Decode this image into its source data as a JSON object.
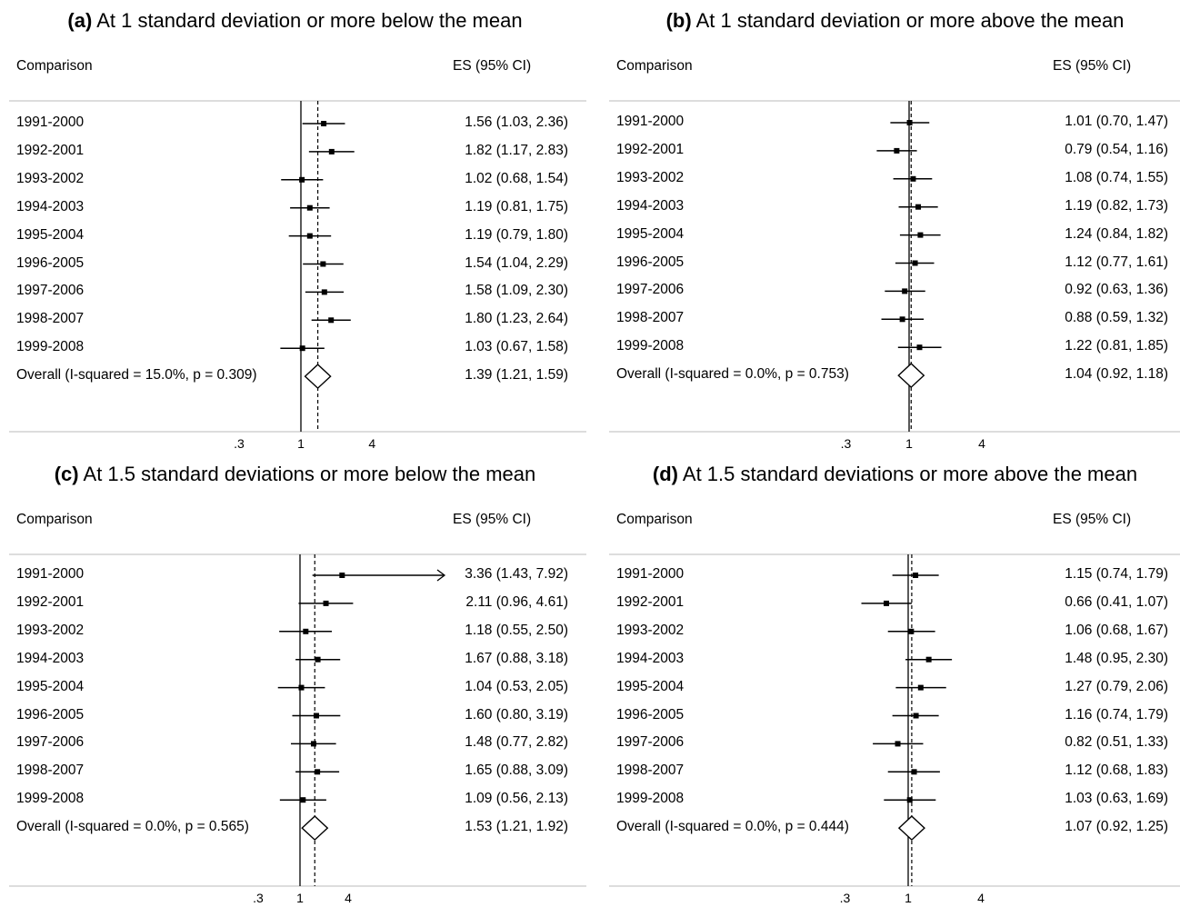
{
  "chart_data": [
    {
      "type": "forest",
      "panel": "a",
      "title_letter": "(a)",
      "title": "At 1 standard deviation or more below the mean",
      "col_comparison": "Comparison",
      "col_es": "ES (95% CI)",
      "scale": "log",
      "xticks": [
        {
          "value": 0.3,
          "label": ".3"
        },
        {
          "value": 1,
          "label": "1"
        },
        {
          "value": 4,
          "label": "4"
        }
      ],
      "rows": [
        {
          "label": "1991-2000",
          "es": 1.56,
          "lo": 1.03,
          "hi": 2.36,
          "text": "1.56 (1.03, 2.36)"
        },
        {
          "label": "1992-2001",
          "es": 1.82,
          "lo": 1.17,
          "hi": 2.83,
          "text": "1.82 (1.17, 2.83)"
        },
        {
          "label": "1993-2002",
          "es": 1.02,
          "lo": 0.68,
          "hi": 1.54,
          "text": "1.02 (0.68, 1.54)"
        },
        {
          "label": "1994-2003",
          "es": 1.19,
          "lo": 0.81,
          "hi": 1.75,
          "text": "1.19 (0.81, 1.75)"
        },
        {
          "label": "1995-2004",
          "es": 1.19,
          "lo": 0.79,
          "hi": 1.8,
          "text": "1.19 (0.79, 1.80)"
        },
        {
          "label": "1996-2005",
          "es": 1.54,
          "lo": 1.04,
          "hi": 2.29,
          "text": "1.54 (1.04, 2.29)"
        },
        {
          "label": "1997-2006",
          "es": 1.58,
          "lo": 1.09,
          "hi": 2.3,
          "text": "1.58 (1.09, 2.30)"
        },
        {
          "label": "1998-2007",
          "es": 1.8,
          "lo": 1.23,
          "hi": 2.64,
          "text": "1.80 (1.23, 2.64)"
        },
        {
          "label": "1999-2008",
          "es": 1.03,
          "lo": 0.67,
          "hi": 1.58,
          "text": "1.03 (0.67, 1.58)"
        }
      ],
      "overall": {
        "label": "Overall  (I-squared = 15.0%, p = 0.309)",
        "es": 1.39,
        "lo": 1.21,
        "hi": 1.59,
        "text": "1.39 (1.21, 1.59)"
      }
    },
    {
      "type": "forest",
      "panel": "b",
      "title_letter": "(b)",
      "title": "At 1 standard deviation or more above the mean",
      "col_comparison": "Comparison",
      "col_es": "ES (95% CI)",
      "scale": "log",
      "xticks": [
        {
          "value": 0.3,
          "label": ".3"
        },
        {
          "value": 1,
          "label": "1"
        },
        {
          "value": 4,
          "label": "4"
        }
      ],
      "rows": [
        {
          "label": "1991-2000",
          "es": 1.01,
          "lo": 0.7,
          "hi": 1.47,
          "text": "1.01 (0.70, 1.47)"
        },
        {
          "label": "1992-2001",
          "es": 0.79,
          "lo": 0.54,
          "hi": 1.16,
          "text": "0.79 (0.54, 1.16)"
        },
        {
          "label": "1993-2002",
          "es": 1.08,
          "lo": 0.74,
          "hi": 1.55,
          "text": "1.08 (0.74, 1.55)"
        },
        {
          "label": "1994-2003",
          "es": 1.19,
          "lo": 0.82,
          "hi": 1.73,
          "text": "1.19 (0.82, 1.73)"
        },
        {
          "label": "1995-2004",
          "es": 1.24,
          "lo": 0.84,
          "hi": 1.82,
          "text": "1.24 (0.84, 1.82)"
        },
        {
          "label": "1996-2005",
          "es": 1.12,
          "lo": 0.77,
          "hi": 1.61,
          "text": "1.12 (0.77, 1.61)"
        },
        {
          "label": "1997-2006",
          "es": 0.92,
          "lo": 0.63,
          "hi": 1.36,
          "text": "0.92 (0.63, 1.36)"
        },
        {
          "label": "1998-2007",
          "es": 0.88,
          "lo": 0.59,
          "hi": 1.32,
          "text": "0.88 (0.59, 1.32)"
        },
        {
          "label": "1999-2008",
          "es": 1.22,
          "lo": 0.81,
          "hi": 1.85,
          "text": "1.22 (0.81, 1.85)"
        }
      ],
      "overall": {
        "label": "Overall  (I-squared = 0.0%, p = 0.753)",
        "es": 1.04,
        "lo": 0.92,
        "hi": 1.18,
        "text": "1.04 (0.92, 1.18)"
      }
    },
    {
      "type": "forest",
      "panel": "c",
      "title_letter": "(c)",
      "title": "At 1.5 standard deviations or more below the mean",
      "col_comparison": "Comparison",
      "col_es": "ES (95% CI)",
      "scale": "log",
      "xticks": [
        {
          "value": 0.3,
          "label": ".3"
        },
        {
          "value": 1,
          "label": "1"
        },
        {
          "value": 4,
          "label": "4"
        }
      ],
      "rows": [
        {
          "label": "1991-2000",
          "es": 3.36,
          "lo": 1.43,
          "hi": 7.92,
          "text": "3.36 (1.43, 7.92)",
          "truncated": true
        },
        {
          "label": "1992-2001",
          "es": 2.11,
          "lo": 0.96,
          "hi": 4.61,
          "text": "2.11 (0.96, 4.61)"
        },
        {
          "label": "1993-2002",
          "es": 1.18,
          "lo": 0.55,
          "hi": 2.5,
          "text": "1.18 (0.55, 2.50)"
        },
        {
          "label": "1994-2003",
          "es": 1.67,
          "lo": 0.88,
          "hi": 3.18,
          "text": "1.67 (0.88, 3.18)"
        },
        {
          "label": "1995-2004",
          "es": 1.04,
          "lo": 0.53,
          "hi": 2.05,
          "text": "1.04 (0.53, 2.05)"
        },
        {
          "label": "1996-2005",
          "es": 1.6,
          "lo": 0.8,
          "hi": 3.19,
          "text": "1.60 (0.80, 3.19)"
        },
        {
          "label": "1997-2006",
          "es": 1.48,
          "lo": 0.77,
          "hi": 2.82,
          "text": "1.48 (0.77, 2.82)"
        },
        {
          "label": "1998-2007",
          "es": 1.65,
          "lo": 0.88,
          "hi": 3.09,
          "text": "1.65 (0.88, 3.09)"
        },
        {
          "label": "1999-2008",
          "es": 1.09,
          "lo": 0.56,
          "hi": 2.13,
          "text": "1.09 (0.56, 2.13)"
        }
      ],
      "overall": {
        "label": "Overall  (I-squared = 0.0%, p = 0.565)",
        "es": 1.53,
        "lo": 1.21,
        "hi": 1.92,
        "text": "1.53 (1.21, 1.92)"
      }
    },
    {
      "type": "forest",
      "panel": "d",
      "title_letter": "(d)",
      "title": "At 1.5 standard deviations or more above the mean",
      "col_comparison": "Comparison",
      "col_es": "ES (95% CI)",
      "scale": "log",
      "xticks": [
        {
          "value": 0.3,
          "label": ".3"
        },
        {
          "value": 1,
          "label": "1"
        },
        {
          "value": 4,
          "label": "4"
        }
      ],
      "rows": [
        {
          "label": "1991-2000",
          "es": 1.15,
          "lo": 0.74,
          "hi": 1.79,
          "text": "1.15 (0.74, 1.79)"
        },
        {
          "label": "1992-2001",
          "es": 0.66,
          "lo": 0.41,
          "hi": 1.07,
          "text": "0.66 (0.41, 1.07)"
        },
        {
          "label": "1993-2002",
          "es": 1.06,
          "lo": 0.68,
          "hi": 1.67,
          "text": "1.06 (0.68, 1.67)"
        },
        {
          "label": "1994-2003",
          "es": 1.48,
          "lo": 0.95,
          "hi": 2.3,
          "text": "1.48 (0.95, 2.30)"
        },
        {
          "label": "1995-2004",
          "es": 1.27,
          "lo": 0.79,
          "hi": 2.06,
          "text": "1.27 (0.79, 2.06)"
        },
        {
          "label": "1996-2005",
          "es": 1.16,
          "lo": 0.74,
          "hi": 1.79,
          "text": "1.16 (0.74, 1.79)"
        },
        {
          "label": "1997-2006",
          "es": 0.82,
          "lo": 0.51,
          "hi": 1.33,
          "text": "0.82 (0.51, 1.33)"
        },
        {
          "label": "1998-2007",
          "es": 1.12,
          "lo": 0.68,
          "hi": 1.83,
          "text": "1.12 (0.68, 1.83)"
        },
        {
          "label": "1999-2008",
          "es": 1.03,
          "lo": 0.63,
          "hi": 1.69,
          "text": "1.03 (0.63, 1.69)"
        }
      ],
      "overall": {
        "label": "Overall  (I-squared = 0.0%, p = 0.444)",
        "es": 1.07,
        "lo": 0.92,
        "hi": 1.25,
        "text": "1.07 (0.92, 1.25)"
      }
    }
  ]
}
